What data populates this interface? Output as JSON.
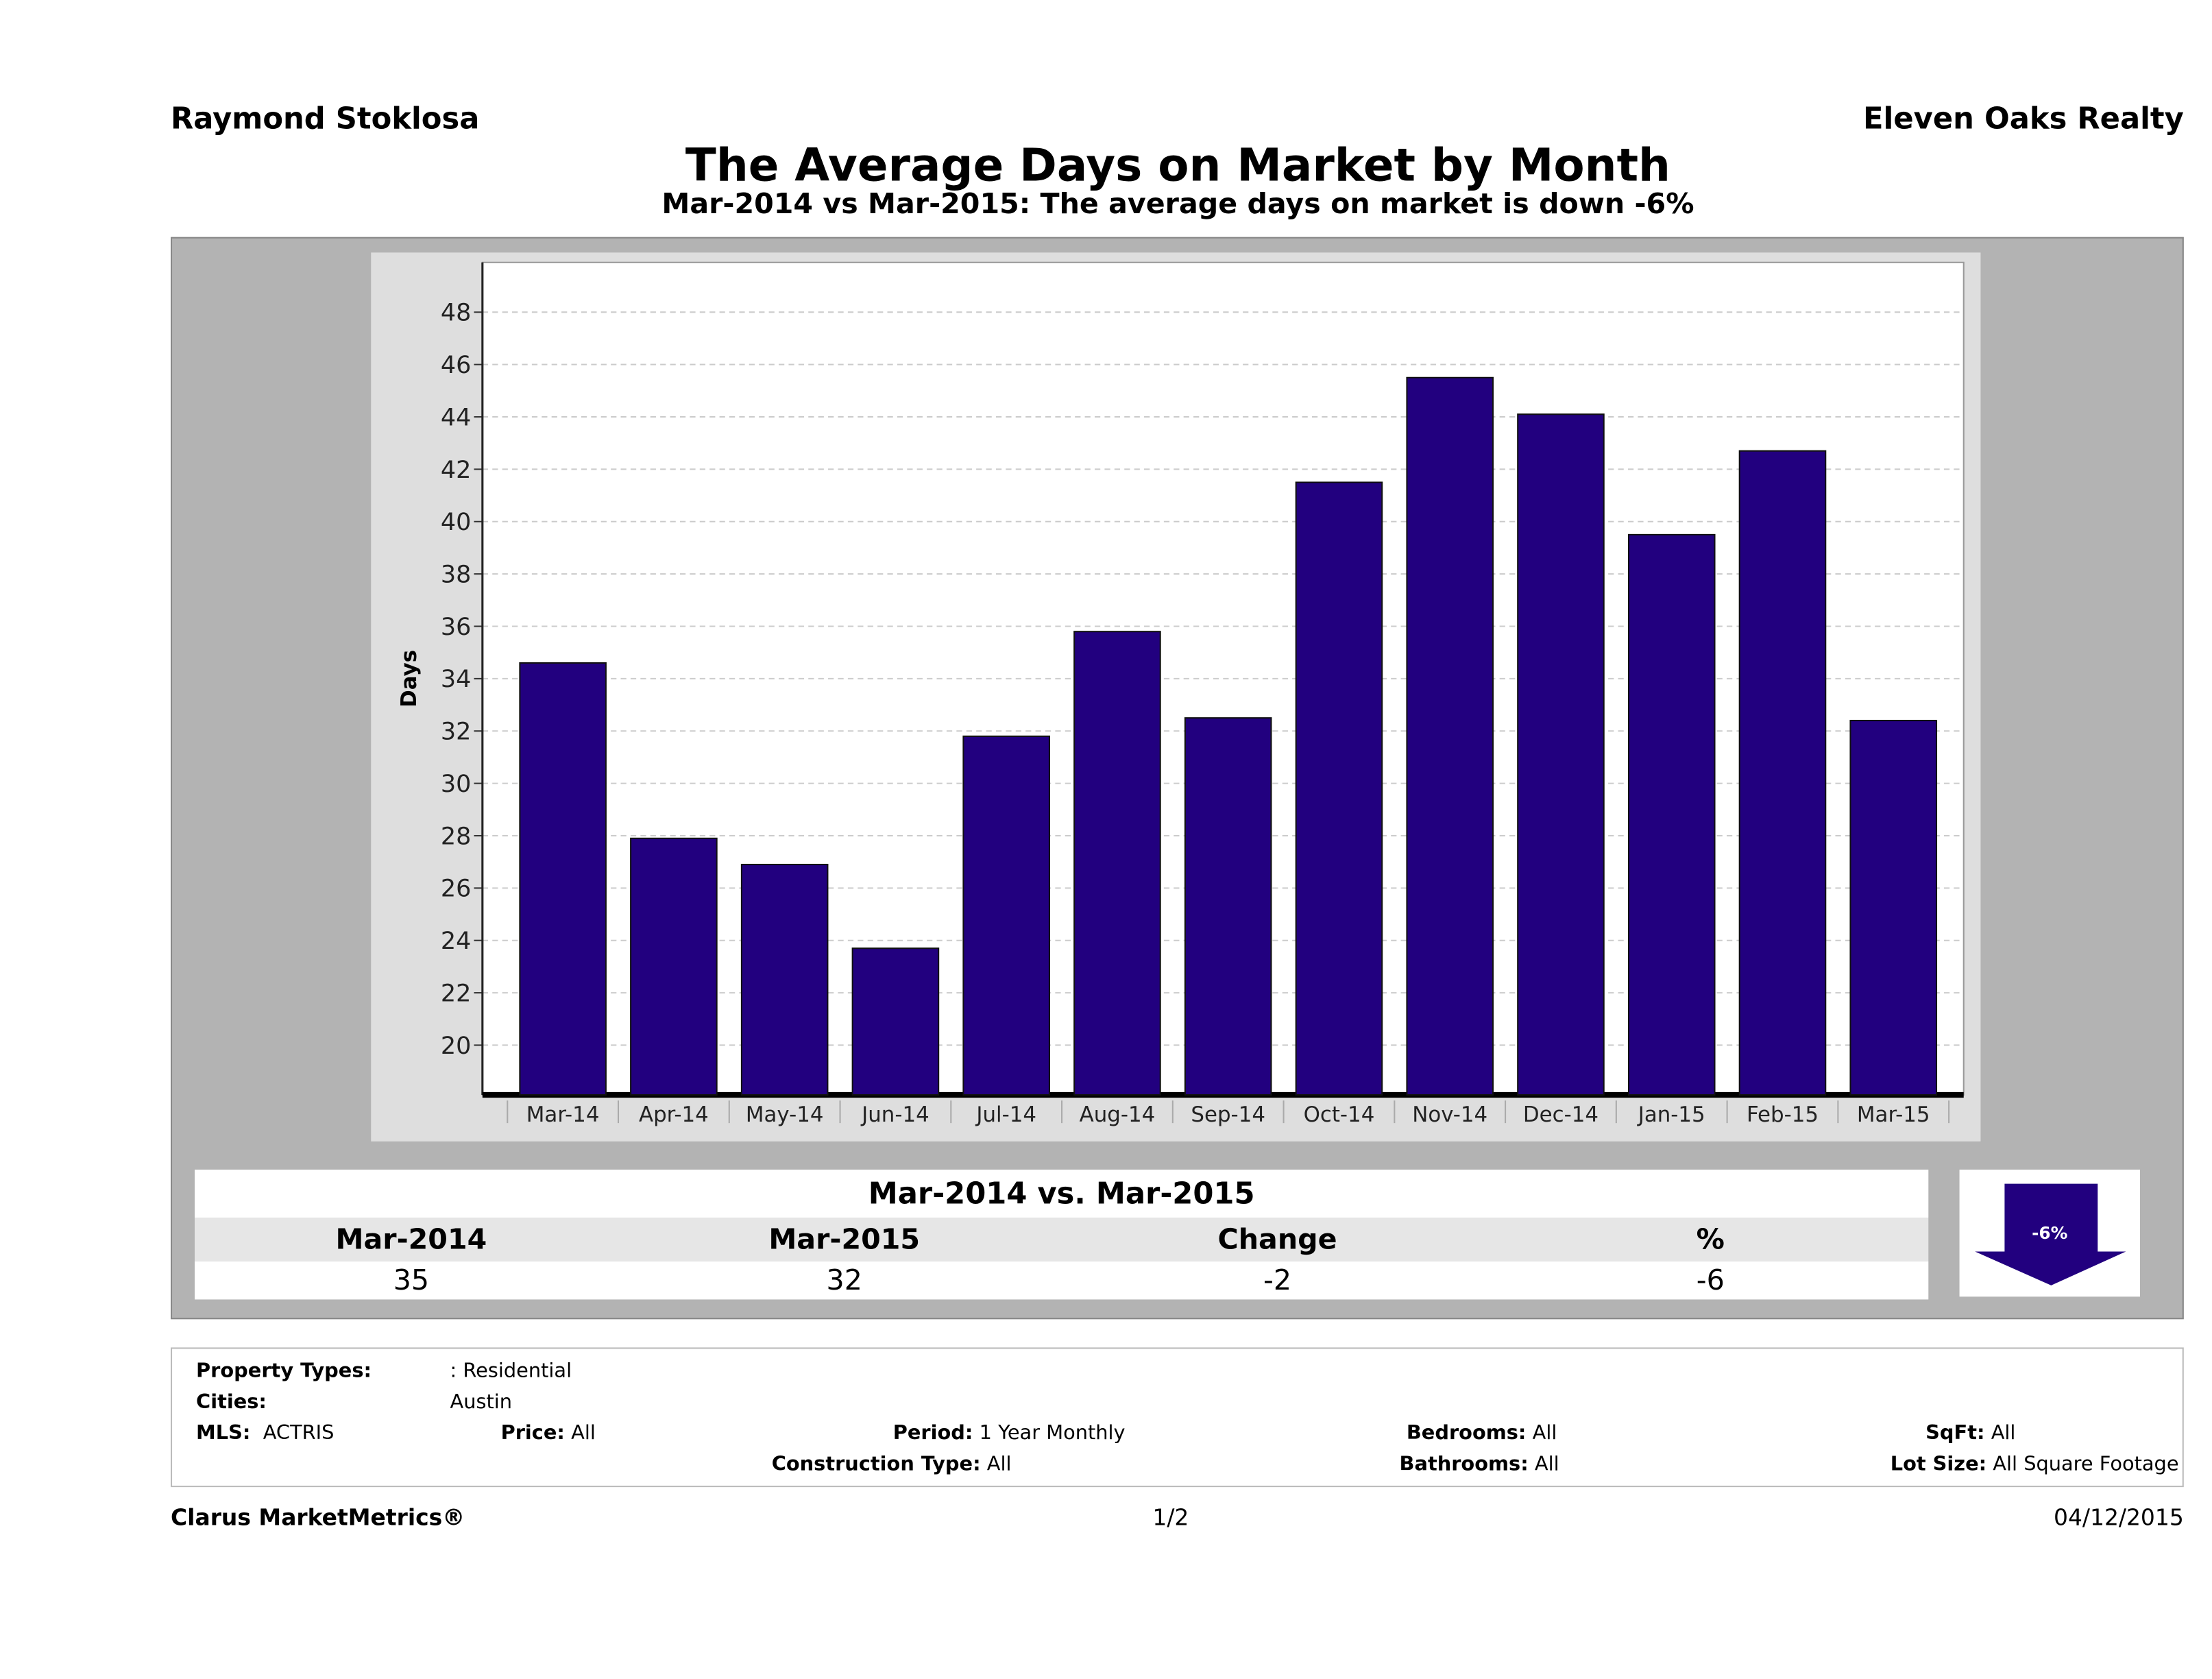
{
  "header": {
    "agent": "Raymond Stoklosa",
    "brokerage": "Eleven Oaks Realty",
    "title": "The Average Days on Market by Month",
    "subtitle": "Mar-2014 vs Mar-2015: The average days on market is down -6%"
  },
  "chart_data": {
    "type": "bar",
    "title": "The Average Days on Market by Month",
    "xlabel": "",
    "ylabel": "Days",
    "categories": [
      "Mar-14",
      "Apr-14",
      "May-14",
      "Jun-14",
      "Jul-14",
      "Aug-14",
      "Sep-14",
      "Oct-14",
      "Nov-14",
      "Dec-14",
      "Jan-15",
      "Feb-15",
      "Mar-15"
    ],
    "values": [
      34.6,
      27.9,
      26.9,
      23.7,
      31.8,
      35.8,
      32.5,
      41.5,
      45.5,
      44.1,
      39.5,
      42.7,
      32.4
    ],
    "yticks": [
      "20",
      "22",
      "24",
      "26",
      "28",
      "30",
      "32",
      "34",
      "36",
      "38",
      "40",
      "42",
      "44",
      "46",
      "48"
    ],
    "ylim": [
      18.1,
      49.9
    ],
    "grid": true,
    "bar_color": "#22007f"
  },
  "summary": {
    "title": "Mar-2014 vs. Mar-2015",
    "headers": [
      "Mar-2014",
      "Mar-2015",
      "Change",
      "%"
    ],
    "values": [
      "35",
      "32",
      "-2",
      "-6"
    ],
    "badge": "-6%"
  },
  "filters": {
    "property_types_label": "Property Types:",
    "property_types": ": Residential",
    "cities_label": "Cities:",
    "cities": "Austin",
    "mls_label": "MLS:",
    "mls": "ACTRIS",
    "price_label": "Price:",
    "price": "All",
    "period_label": "Period:",
    "period": "1 Year Monthly",
    "construction_label": "Construction Type:",
    "construction": "All",
    "bedrooms_label": "Bedrooms:",
    "bedrooms": "All",
    "bathrooms_label": "Bathrooms:",
    "bathrooms": "All",
    "sqft_label": "SqFt:",
    "sqft": "All",
    "lotsize_label": "Lot Size:",
    "lotsize": "All Square Footage"
  },
  "footer": {
    "brand": "Clarus MarketMetrics®",
    "page": "1/2",
    "date": "04/12/2015"
  }
}
